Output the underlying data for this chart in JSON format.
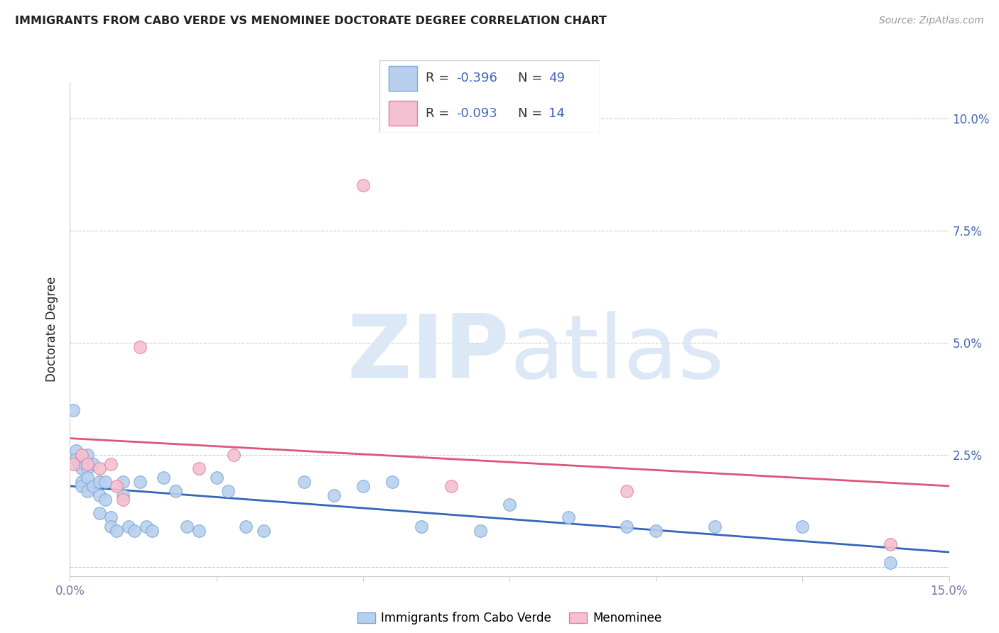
{
  "title": "IMMIGRANTS FROM CABO VERDE VS MENOMINEE DOCTORATE DEGREE CORRELATION CHART",
  "source": "Source: ZipAtlas.com",
  "ylabel": "Doctorate Degree",
  "yticks": [
    0.0,
    0.025,
    0.05,
    0.075,
    0.1
  ],
  "ytick_labels": [
    "",
    "2.5%",
    "5.0%",
    "7.5%",
    "10.0%"
  ],
  "xlim": [
    0.0,
    0.15
  ],
  "ylim": [
    -0.002,
    0.108
  ],
  "series1_label": "Immigrants from Cabo Verde",
  "series1_R": "-0.396",
  "series1_N": "49",
  "series1_color": "#b8d0ee",
  "series1_edge_color": "#7aa8d8",
  "series2_label": "Menominee",
  "series2_R": "-0.093",
  "series2_N": "14",
  "series2_color": "#f5c0d0",
  "series2_edge_color": "#e080a0",
  "trendline1_color": "#3366bb",
  "trendline2_color": "#dd5577",
  "watermark_color": "#dce8f5",
  "background_color": "#ffffff",
  "grid_color": "#cccccc",
  "axis_color": "#7777aa",
  "title_color": "#222222",
  "source_color": "#999999",
  "right_label_color": "#4466bb",
  "legend_text_color": "#333333",
  "legend_value_color": "#4466bb",
  "series1_x": [
    0.0005,
    0.001,
    0.001,
    0.0015,
    0.002,
    0.002,
    0.002,
    0.003,
    0.003,
    0.003,
    0.003,
    0.004,
    0.004,
    0.005,
    0.005,
    0.005,
    0.006,
    0.006,
    0.007,
    0.007,
    0.008,
    0.009,
    0.009,
    0.01,
    0.011,
    0.012,
    0.013,
    0.014,
    0.016,
    0.018,
    0.02,
    0.022,
    0.025,
    0.027,
    0.03,
    0.033,
    0.04,
    0.045,
    0.05,
    0.055,
    0.06,
    0.07,
    0.075,
    0.085,
    0.095,
    0.1,
    0.11,
    0.125,
    0.14
  ],
  "series1_y": [
    0.035,
    0.026,
    0.024,
    0.023,
    0.022,
    0.019,
    0.018,
    0.025,
    0.022,
    0.02,
    0.017,
    0.023,
    0.018,
    0.019,
    0.016,
    0.012,
    0.019,
    0.015,
    0.011,
    0.009,
    0.008,
    0.019,
    0.016,
    0.009,
    0.008,
    0.019,
    0.009,
    0.008,
    0.02,
    0.017,
    0.009,
    0.008,
    0.02,
    0.017,
    0.009,
    0.008,
    0.019,
    0.016,
    0.018,
    0.019,
    0.009,
    0.008,
    0.014,
    0.011,
    0.009,
    0.008,
    0.009,
    0.009,
    0.001
  ],
  "series2_x": [
    0.0005,
    0.002,
    0.003,
    0.005,
    0.007,
    0.008,
    0.009,
    0.012,
    0.022,
    0.028,
    0.05,
    0.065,
    0.095,
    0.14
  ],
  "series2_y": [
    0.023,
    0.025,
    0.023,
    0.022,
    0.023,
    0.018,
    0.015,
    0.049,
    0.022,
    0.025,
    0.085,
    0.018,
    0.017,
    0.005
  ]
}
